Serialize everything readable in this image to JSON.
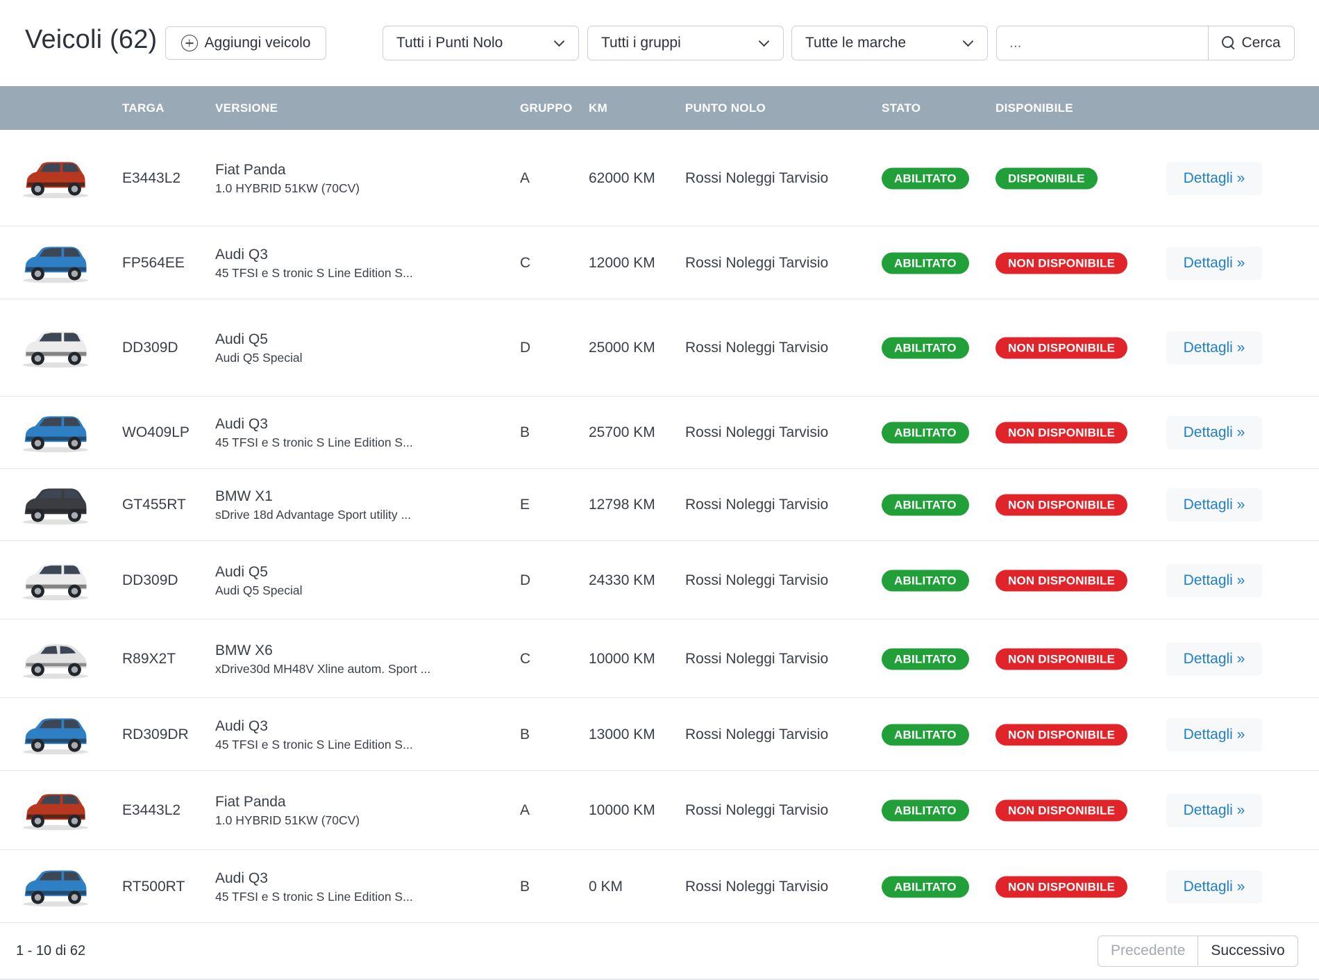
{
  "header": {
    "title": "Veicoli (62)",
    "add_button": "Aggiungi veicolo",
    "filters": [
      "Tutti i Punti Nolo",
      "Tutti i gruppi",
      "Tutte le marche"
    ],
    "search_placeholder": "...",
    "search_button": "Cerca"
  },
  "table": {
    "columns": [
      "TARGA",
      "VERSIONE",
      "GRUPPO",
      "KM",
      "PUNTO NOLO",
      "STATO",
      "DISPONIBILE"
    ],
    "rows": [
      {
        "car_color": "#b8381f",
        "car_type": "panda",
        "targa": "E3443L2",
        "model": "Fiat Panda",
        "trim": "1.0 HYBRID 51KW (70CV)",
        "gruppo": "A",
        "km": "62000 KM",
        "punto": "Rossi Noleggi Tarvisio",
        "stato": "ABILITATO",
        "disponibile": "DISPONIBILE",
        "disp_color": "#21a03a",
        "details": "Dettagli »"
      },
      {
        "car_color": "#2f7fc4",
        "car_type": "suv",
        "targa": "FP564EE",
        "model": "Audi Q3",
        "trim": "45 TFSI e S tronic S Line Edition S...",
        "gruppo": "C",
        "km": "12000 KM",
        "punto": "Rossi Noleggi Tarvisio",
        "stato": "ABILITATO",
        "disponibile": "NON DISPONIBILE",
        "disp_color": "#e0242a",
        "details": "Dettagli »"
      },
      {
        "car_color": "#ececec",
        "car_type": "suv",
        "targa": "DD309D",
        "model": "Audi Q5",
        "trim": "Audi Q5 Special",
        "gruppo": "D",
        "km": "25000 KM",
        "punto": "Rossi Noleggi Tarvisio",
        "stato": "ABILITATO",
        "disponibile": "NON DISPONIBILE",
        "disp_color": "#e0242a",
        "details": "Dettagli »"
      },
      {
        "car_color": "#2f7fc4",
        "car_type": "suv",
        "targa": "WO409LP",
        "model": "Audi Q3",
        "trim": "45 TFSI e S tronic S Line Edition S...",
        "gruppo": "B",
        "km": "25700 KM",
        "punto": "Rossi Noleggi Tarvisio",
        "stato": "ABILITATO",
        "disponibile": "NON DISPONIBILE",
        "disp_color": "#e0242a",
        "details": "Dettagli »"
      },
      {
        "car_color": "#3b3d41",
        "car_type": "suv",
        "targa": "GT455RT",
        "model": "BMW X1",
        "trim": "sDrive 18d Advantage Sport utility ...",
        "gruppo": "E",
        "km": "12798 KM",
        "punto": "Rossi Noleggi Tarvisio",
        "stato": "ABILITATO",
        "disponibile": "NON DISPONIBILE",
        "disp_color": "#e0242a",
        "details": "Dettagli »"
      },
      {
        "car_color": "#ececec",
        "car_type": "suv",
        "targa": "DD309D",
        "model": "Audi Q5",
        "trim": "Audi Q5 Special",
        "gruppo": "D",
        "km": "24330 KM",
        "punto": "Rossi Noleggi Tarvisio",
        "stato": "ABILITATO",
        "disponibile": "NON DISPONIBILE",
        "disp_color": "#e0242a",
        "details": "Dettagli »"
      },
      {
        "car_color": "#e2e2e2",
        "car_type": "coupe",
        "targa": "R89X2T",
        "model": "BMW X6",
        "trim": "xDrive30d MH48V Xline autom. Sport ...",
        "gruppo": "C",
        "km": "10000 KM",
        "punto": "Rossi Noleggi Tarvisio",
        "stato": "ABILITATO",
        "disponibile": "NON DISPONIBILE",
        "disp_color": "#e0242a",
        "details": "Dettagli »"
      },
      {
        "car_color": "#2f7fc4",
        "car_type": "suv",
        "targa": "RD309DR",
        "model": "Audi Q3",
        "trim": "45 TFSI e S tronic S Line Edition S...",
        "gruppo": "B",
        "km": "13000 KM",
        "punto": "Rossi Noleggi Tarvisio",
        "stato": "ABILITATO",
        "disponibile": "NON DISPONIBILE",
        "disp_color": "#e0242a",
        "details": "Dettagli »"
      },
      {
        "car_color": "#b8381f",
        "car_type": "panda",
        "targa": "E3443L2",
        "model": "Fiat Panda",
        "trim": "1.0 HYBRID 51KW (70CV)",
        "gruppo": "A",
        "km": "10000 KM",
        "punto": "Rossi Noleggi Tarvisio",
        "stato": "ABILITATO",
        "disponibile": "NON DISPONIBILE",
        "disp_color": "#e0242a",
        "details": "Dettagli »"
      },
      {
        "car_color": "#2f7fc4",
        "car_type": "suv",
        "targa": "RT500RT",
        "model": "Audi Q3",
        "trim": "45 TFSI e S tronic S Line Edition S...",
        "gruppo": "B",
        "km": "0 KM",
        "punto": "Rossi Noleggi Tarvisio",
        "stato": "ABILITATO",
        "disponibile": "NON DISPONIBILE",
        "disp_color": "#e0242a",
        "details": "Dettagli »"
      }
    ]
  },
  "status_colors": {
    "abilitato": "#21a03a",
    "disponibile": "#21a03a",
    "non_disponibile": "#e0242a"
  },
  "footer": {
    "count": "1 - 10 di 62",
    "prev": "Precedente",
    "next": "Successivo"
  }
}
